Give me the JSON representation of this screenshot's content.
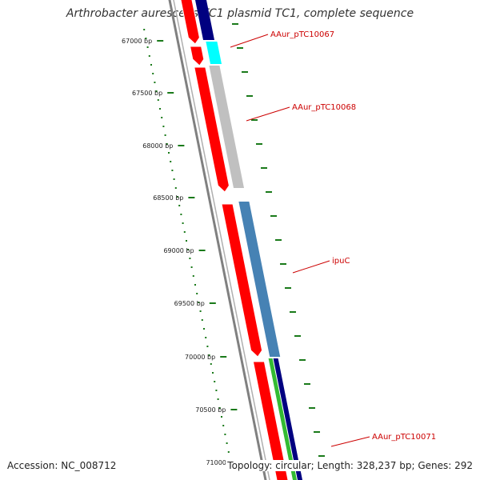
{
  "title": "Arthrobacter aurescens TC1 plasmid TC1, complete sequence",
  "accession": "Accession: NC_008712",
  "stats": "Topology: circular; Length: 328,237 bp; Genes: 292",
  "ticks": [
    "67000 bp",
    "67500 bp",
    "68000 bp",
    "68500 bp",
    "69000 bp",
    "69500 bp",
    "70000 bp",
    "70500 bp",
    "71000 bp"
  ],
  "gene_labels": [
    "AAur_pTC10067",
    "AAur_pTC10068",
    "ipuC",
    "AAur_pTC10071"
  ],
  "colors": {
    "backbone": "#808080",
    "ruler": "#1a7a1a",
    "forward_gene": "#ff0000",
    "label": "#cc0000",
    "navy_gene": "#000080",
    "cyan_gene": "#00ffff",
    "grey_gene": "#c0c0c0",
    "steelblue_gene": "#4682b4",
    "green_gene": "#33bb33"
  }
}
